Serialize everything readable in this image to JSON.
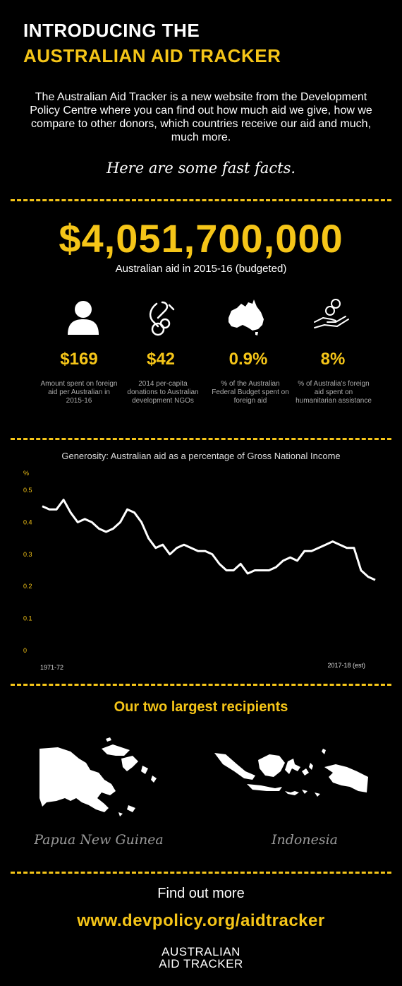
{
  "header": {
    "title_line1": "INTRODUCING THE",
    "title_line2": "AUSTRALIAN AID TRACKER",
    "intro": "The Australian Aid Tracker is a new website from the Development Policy Centre where you can find out how much aid we give, how we compare to other donors, which countries receive our aid and much, much more.",
    "fast_facts": "Here are some fast facts."
  },
  "headline": {
    "value": "$4,051,700,000",
    "label": "Australian aid in 2015-16 (budgeted)"
  },
  "stats": [
    {
      "icon": "person-icon",
      "value": "$169",
      "desc": "Amount spent on foreign aid per Australian in 2015-16"
    },
    {
      "icon": "donation-hand-icon",
      "value": "$42",
      "desc": "2014 per-capita donations to Australian development NGOs"
    },
    {
      "icon": "australia-map-icon",
      "value": "0.9%",
      "desc": "% of the Australian Federal Budget spent on foreign aid"
    },
    {
      "icon": "coins-hand-icon",
      "value": "8%",
      "desc": "% of Australia's foreign aid spent on humanitarian assistance"
    }
  ],
  "chart_data": {
    "type": "line",
    "title": "Generosity: Australian aid as a percentage of Gross National Income",
    "ylabel": "%",
    "ylim": [
      0,
      0.5
    ],
    "yticks": [
      "0.5",
      "0.4",
      "0.3",
      "0.2",
      "0.1",
      "0"
    ],
    "x_start_label": "1971-72",
    "x_end_label": "2017-18 (est)",
    "color": "#ffffff",
    "series": [
      {
        "values": [
          0.45,
          0.44,
          0.44,
          0.47,
          0.43,
          0.4,
          0.41,
          0.4,
          0.38,
          0.37,
          0.38,
          0.4,
          0.44,
          0.43,
          0.4,
          0.35,
          0.32,
          0.33,
          0.3,
          0.32,
          0.33,
          0.32,
          0.31,
          0.31,
          0.3,
          0.27,
          0.25,
          0.25,
          0.27,
          0.24,
          0.25,
          0.25,
          0.25,
          0.26,
          0.28,
          0.29,
          0.28,
          0.31,
          0.31,
          0.32,
          0.33,
          0.34,
          0.33,
          0.32,
          0.32,
          0.25,
          0.23,
          0.22
        ]
      }
    ]
  },
  "recipients": {
    "title": "Our two largest recipients",
    "countries": [
      {
        "name": "Papua New Guinea",
        "icon": "png-map-icon"
      },
      {
        "name": "Indonesia",
        "icon": "indonesia-map-icon"
      }
    ]
  },
  "footer": {
    "find_out_more": "Find out more",
    "url": "www.devpolicy.org/aidtracker",
    "logo_line1": "AUSTRALIAN",
    "logo_line2": "AID TRACKER"
  },
  "colors": {
    "accent": "#f5c518",
    "background": "#000000"
  }
}
